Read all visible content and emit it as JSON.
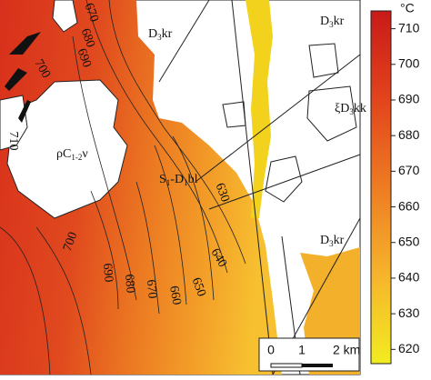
{
  "map": {
    "geology_labels": [
      {
        "parts": [
          "D",
          "3",
          "kr"
        ]
      },
      {
        "parts": [
          "D",
          "3",
          "kr"
        ]
      },
      {
        "parts": [
          "ξD",
          "3",
          "kk"
        ]
      },
      {
        "parts": [
          "D",
          "3",
          "kr"
        ]
      },
      {
        "parts": [
          "ρC",
          "1-2",
          "ν"
        ]
      },
      {
        "parts": [
          "S",
          "1",
          "-D",
          "1",
          "bl"
        ]
      }
    ],
    "contour_labels": [
      670,
      680,
      690,
      700,
      710,
      630,
      640,
      650,
      660,
      670,
      680,
      690,
      700
    ],
    "scale_bar": [
      "0",
      "1",
      "2 km"
    ]
  },
  "colorbar": {
    "title": "°C",
    "lim": [
      616,
      715
    ],
    "ticks": [
      620,
      630,
      640,
      650,
      660,
      670,
      680,
      690,
      700,
      710
    ]
  }
}
